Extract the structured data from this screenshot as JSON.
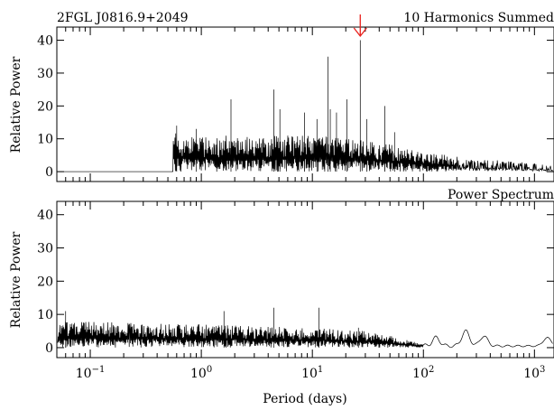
{
  "chart_data": [
    {
      "type": "line",
      "title_left": "2FGL J0816.9+2049",
      "title_right": "10 Harmonics Summed",
      "xlabel": "",
      "ylabel": "Relative Power",
      "xscale": "log",
      "xlim": [
        0.05,
        1500
      ],
      "ylim": [
        -3,
        44
      ],
      "yticks": [
        0,
        10,
        20,
        30,
        40
      ],
      "ytick_labels": [
        "0",
        "10",
        "20",
        "30",
        "40"
      ],
      "grid": false,
      "marker": {
        "x": 27,
        "y": 40,
        "color": "#e8201c",
        "icon": "arrow-down-icon"
      },
      "series": [
        {
          "x_start": 0.55,
          "x_end": 1500,
          "baseline_noise": [
            {
              "x": 0.55,
              "y": 12
            },
            {
              "x": 1,
              "y": 11
            },
            {
              "x": 3,
              "y": 11
            },
            {
              "x": 10,
              "y": 11
            },
            {
              "x": 30,
              "y": 10
            },
            {
              "x": 100,
              "y": 6
            },
            {
              "x": 300,
              "y": 4
            },
            {
              "x": 1500,
              "y": 2
            }
          ],
          "peaks": [
            {
              "x": 0.6,
              "y": 14
            },
            {
              "x": 0.9,
              "y": 13
            },
            {
              "x": 1.85,
              "y": 22
            },
            {
              "x": 4.5,
              "y": 25
            },
            {
              "x": 5.1,
              "y": 19
            },
            {
              "x": 8.5,
              "y": 18
            },
            {
              "x": 11.0,
              "y": 16
            },
            {
              "x": 13.8,
              "y": 35
            },
            {
              "x": 14.5,
              "y": 19
            },
            {
              "x": 16.5,
              "y": 18
            },
            {
              "x": 20.5,
              "y": 22
            },
            {
              "x": 27,
              "y": 40
            },
            {
              "x": 31,
              "y": 16
            },
            {
              "x": 45,
              "y": 20
            },
            {
              "x": 55,
              "y": 12
            }
          ]
        }
      ]
    },
    {
      "type": "line",
      "title_right": "Power Spectrum",
      "xlabel": "Period (days)",
      "ylabel": "Relative Power",
      "xscale": "log",
      "xlim": [
        0.05,
        1500
      ],
      "ylim": [
        -3,
        44
      ],
      "yticks": [
        0,
        10,
        20,
        30,
        40
      ],
      "ytick_labels": [
        "0",
        "10",
        "20",
        "30",
        "40"
      ],
      "xticks": [
        0.1,
        1,
        10,
        100,
        1000
      ],
      "xtick_labels": [
        {
          "base": "10",
          "exp": "−1"
        },
        {
          "base": "10",
          "exp": "0"
        },
        {
          "base": "10",
          "exp": "1"
        },
        {
          "base": "10",
          "exp": "2"
        },
        {
          "base": "10",
          "exp": "3"
        }
      ],
      "grid": false,
      "series": [
        {
          "x_start": 0.05,
          "x_end": 1500,
          "baseline_noise": [
            {
              "x": 0.05,
              "y": 8
            },
            {
              "x": 1,
              "y": 7
            },
            {
              "x": 10,
              "y": 6
            },
            {
              "x": 30,
              "y": 5
            },
            {
              "x": 60,
              "y": 3
            },
            {
              "x": 100,
              "y": 1
            },
            {
              "x": 1500,
              "y": 0.5
            }
          ],
          "peaks": [
            {
              "x": 0.06,
              "y": 11
            },
            {
              "x": 1.6,
              "y": 11
            },
            {
              "x": 4.5,
              "y": 12
            },
            {
              "x": 11.5,
              "y": 12
            },
            {
              "x": 26,
              "y": 6
            }
          ],
          "smooth_bumps": [
            {
              "x": 130,
              "y": 2.5
            },
            {
              "x": 240,
              "y": 4.5
            },
            {
              "x": 350,
              "y": 3
            },
            {
              "x": 1300,
              "y": 2.5
            }
          ]
        }
      ]
    }
  ]
}
